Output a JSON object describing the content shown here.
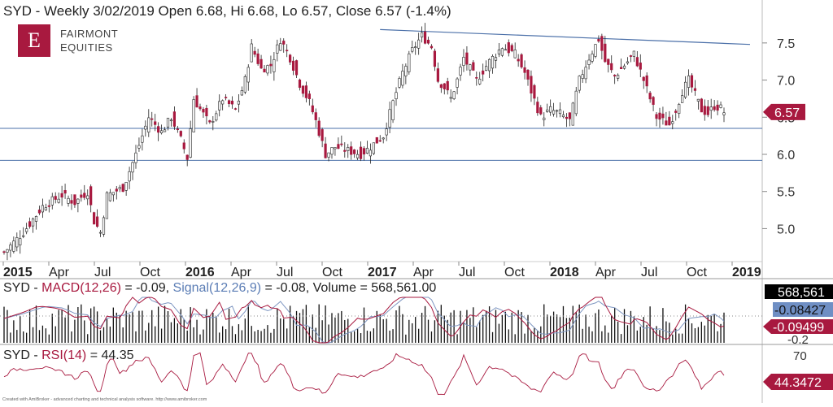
{
  "header": {
    "title": "SYD - Weekly 3/02/2019 Open 6.68, Hi 6.68, Lo 6.57, Close 6.57 (-1.4%)"
  },
  "logo": {
    "mark": "E",
    "line1": "FAIRMONT",
    "line2": "EQUITIES"
  },
  "macd_header": {
    "prefix": "SYD - ",
    "macd": "MACD(12,26)",
    "macd_val": " = -0.09, ",
    "signal": "Signal(12,26,9)",
    "signal_val": " = -0.08, Volume = 568,561.00"
  },
  "rsi_header": {
    "prefix": "SYD - ",
    "rsi": "RSI(14)",
    "rsi_val": " = 44.35"
  },
  "footer": "Created with AmiBroker - advanced charting and technical analysis software. http://www.amibroker.com",
  "colors": {
    "bull": "#ffffff",
    "bear": "#a8193f",
    "trend": "#4a6fa8",
    "macd": "#a8193f",
    "signal": "#7f97c2",
    "volume": "#111111",
    "rsi": "#a8193f"
  },
  "chart_data": [
    {
      "type": "candlestick",
      "title": "SYD - Weekly 3/02/2019 Open 6.68, Hi 6.68, Lo 6.57, Close 6.57 (-1.4%)",
      "ylim": [
        4.6,
        7.75
      ],
      "y_ticks": [
        "7.5",
        "7.0",
        "6.5",
        "6.0",
        "5.5",
        "5.0"
      ],
      "x_tick_labels": [
        "2015",
        "Apr",
        "Jul",
        "Oct",
        "2016",
        "Apr",
        "Jul",
        "Oct",
        "2017",
        "Apr",
        "Jul",
        "Oct",
        "2018",
        "Apr",
        "Jul",
        "Oct",
        "2019"
      ],
      "x_tick_bold": [
        "2015",
        "2016",
        "2017",
        "2018",
        "2019"
      ],
      "last_price_label": "6.57",
      "last_price": 6.57,
      "horizontal_lines": [
        6.35,
        5.92
      ],
      "trendline": {
        "from": [
          "2017-04",
          7.68
        ],
        "to": [
          "2019-01",
          7.48
        ]
      },
      "price_path": [
        [
          0,
          4.68
        ],
        [
          6,
          4.95
        ],
        [
          12,
          5.3
        ],
        [
          18,
          5.45
        ],
        [
          22,
          5.35
        ],
        [
          26,
          5.5
        ],
        [
          28,
          5.1
        ],
        [
          30,
          4.95
        ],
        [
          32,
          5.45
        ],
        [
          37,
          5.55
        ],
        [
          41,
          6.0
        ],
        [
          45,
          6.5
        ],
        [
          49,
          6.3
        ],
        [
          52,
          6.5
        ],
        [
          55,
          6.2
        ],
        [
          57,
          5.95
        ],
        [
          59,
          6.75
        ],
        [
          64,
          6.4
        ],
        [
          68,
          6.75
        ],
        [
          72,
          6.6
        ],
        [
          75,
          7.0
        ],
        [
          77,
          7.45
        ],
        [
          80,
          7.15
        ],
        [
          83,
          7.2
        ],
        [
          86,
          7.55
        ],
        [
          89,
          7.3
        ],
        [
          92,
          6.95
        ],
        [
          95,
          6.7
        ],
        [
          97,
          6.45
        ],
        [
          100,
          6.0
        ],
        [
          103,
          6.1
        ],
        [
          107,
          6.05
        ],
        [
          111,
          6.0
        ],
        [
          114,
          6.1
        ],
        [
          118,
          6.25
        ],
        [
          121,
          6.7
        ],
        [
          124,
          7.1
        ],
        [
          127,
          7.4
        ],
        [
          130,
          7.6
        ],
        [
          133,
          7.45
        ],
        [
          135,
          7.0
        ],
        [
          137,
          6.9
        ],
        [
          139,
          6.75
        ],
        [
          141,
          7.0
        ],
        [
          143,
          7.3
        ],
        [
          147,
          7.0
        ],
        [
          151,
          7.25
        ],
        [
          155,
          7.45
        ],
        [
          159,
          7.35
        ],
        [
          162,
          7.1
        ],
        [
          164,
          6.85
        ],
        [
          167,
          6.5
        ],
        [
          170,
          6.6
        ],
        [
          173,
          6.55
        ],
        [
          176,
          6.45
        ],
        [
          179,
          7.0
        ],
        [
          182,
          7.3
        ],
        [
          185,
          7.55
        ],
        [
          187,
          7.25
        ],
        [
          190,
          7.05
        ],
        [
          193,
          7.2
        ],
        [
          196,
          7.35
        ],
        [
          199,
          7.0
        ],
        [
          201,
          6.75
        ],
        [
          203,
          6.5
        ],
        [
          205,
          6.45
        ],
        [
          207,
          6.4
        ],
        [
          209,
          6.6
        ],
        [
          211,
          6.85
        ],
        [
          213,
          7.0
        ],
        [
          215,
          6.8
        ],
        [
          217,
          6.6
        ],
        [
          219,
          6.55
        ],
        [
          221,
          6.65
        ],
        [
          223,
          6.62
        ],
        [
          224,
          6.57
        ]
      ]
    },
    {
      "type": "bar",
      "title": "SYD - MACD(12,26) = -0.09, Signal(12,26,9) = -0.08, Volume = 568,561.00",
      "series": [
        {
          "name": "MACD(12,26)",
          "last": -0.09
        },
        {
          "name": "Signal(12,26,9)",
          "last": -0.08
        },
        {
          "name": "Volume",
          "last": 568561
        }
      ],
      "y_ticks": [
        "-0.2"
      ],
      "value_labels": [
        "568,561",
        "-0.08427",
        "-0.09499"
      ]
    },
    {
      "type": "line",
      "title": "SYD - RSI(14) = 44.35",
      "series": [
        {
          "name": "RSI(14)",
          "last": 44.35
        }
      ],
      "y_ticks": [
        "70"
      ],
      "value_label": "44.3472"
    }
  ]
}
